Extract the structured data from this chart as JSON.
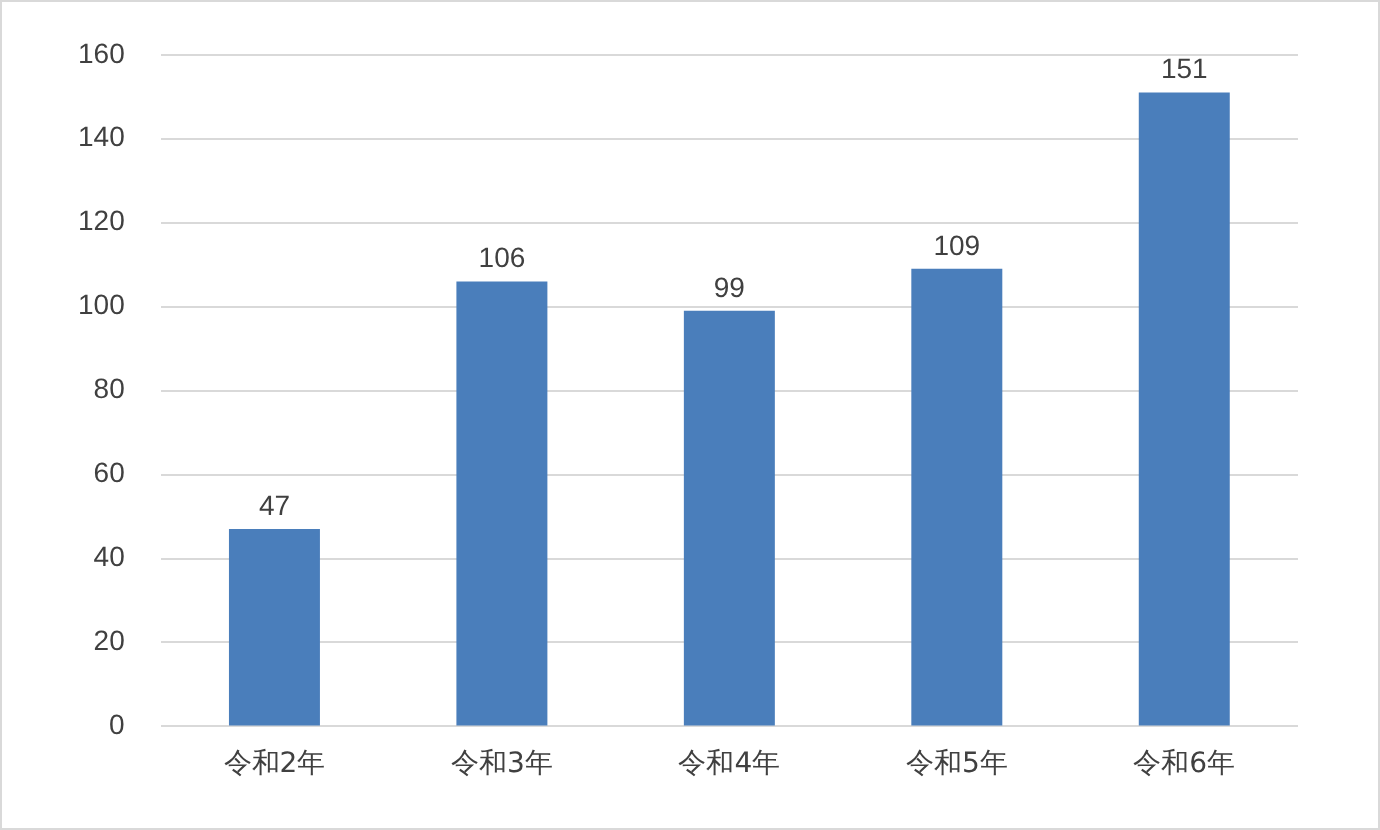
{
  "chart_data": {
    "type": "bar",
    "categories": [
      "令和2年",
      "令和3年",
      "令和4年",
      "令和5年",
      "令和6年"
    ],
    "values": [
      47,
      106,
      99,
      109,
      151
    ],
    "color": "#4a7ebb",
    "ylim": [
      0,
      160
    ],
    "yticks": [
      0,
      20,
      40,
      60,
      80,
      100,
      120,
      140,
      160
    ],
    "grid": "y",
    "data_labels": true,
    "legend": false
  }
}
